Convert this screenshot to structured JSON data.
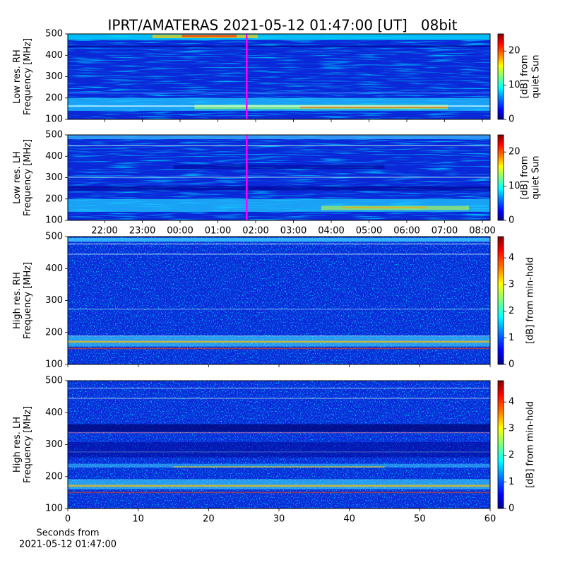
{
  "title": "IPRT/AMATERAS 2021-05-12 01:47:00 [UT]   08bit",
  "chart_data": [
    {
      "type": "heatmap",
      "ylabel": [
        "Low res. RH",
        "Frequency [MHz]"
      ],
      "ylim": [
        100,
        500
      ],
      "yticks": [
        100,
        200,
        300,
        400,
        500
      ],
      "xticks": [
        "22:00",
        "23:00",
        "00:00",
        "01:00",
        "02:00",
        "03:00",
        "04:00",
        "05:00",
        "06:00",
        "07:00",
        "08:00"
      ],
      "colorbar_label": [
        "[dB] from",
        "quiet Sun"
      ],
      "clim": [
        0,
        25
      ],
      "cticks": [
        0,
        10,
        20
      ]
    },
    {
      "type": "heatmap",
      "ylabel": [
        "Low res. LH",
        "Frequency [MHz]"
      ],
      "ylim": [
        100,
        500
      ],
      "yticks": [
        100,
        200,
        300,
        400,
        500
      ],
      "xticks": [
        "22:00",
        "23:00",
        "00:00",
        "01:00",
        "02:00",
        "03:00",
        "04:00",
        "05:00",
        "06:00",
        "07:00",
        "08:00"
      ],
      "colorbar_label": [
        "[dB] from",
        "quiet Sun"
      ],
      "clim": [
        0,
        25
      ],
      "cticks": [
        0,
        10,
        20
      ]
    },
    {
      "type": "heatmap",
      "ylabel": [
        "High res. RH",
        "Frequency [MHz]"
      ],
      "ylim": [
        100,
        500
      ],
      "yticks": [
        100,
        200,
        300,
        400,
        500
      ],
      "xlim": [
        0,
        60
      ],
      "xticks": [
        0,
        10,
        20,
        30,
        40,
        50,
        60
      ],
      "colorbar_label": [
        "[dB] from min-hold"
      ],
      "clim": [
        0,
        4.8
      ],
      "cticks": [
        0,
        1,
        2,
        3,
        4
      ]
    },
    {
      "type": "heatmap",
      "ylabel": [
        "High res. LH",
        "Frequency [MHz]"
      ],
      "ylim": [
        100,
        500
      ],
      "yticks": [
        100,
        200,
        300,
        400,
        500
      ],
      "xlim": [
        0,
        60
      ],
      "xticks": [
        0,
        10,
        20,
        30,
        40,
        50,
        60
      ],
      "xlabel": [
        "Seconds from",
        "2021-05-12 01:47:00"
      ],
      "colorbar_label": [
        "[dB] from min-hold"
      ],
      "clim": [
        0,
        4.8
      ],
      "cticks": [
        0,
        1,
        2,
        3,
        4
      ]
    }
  ]
}
